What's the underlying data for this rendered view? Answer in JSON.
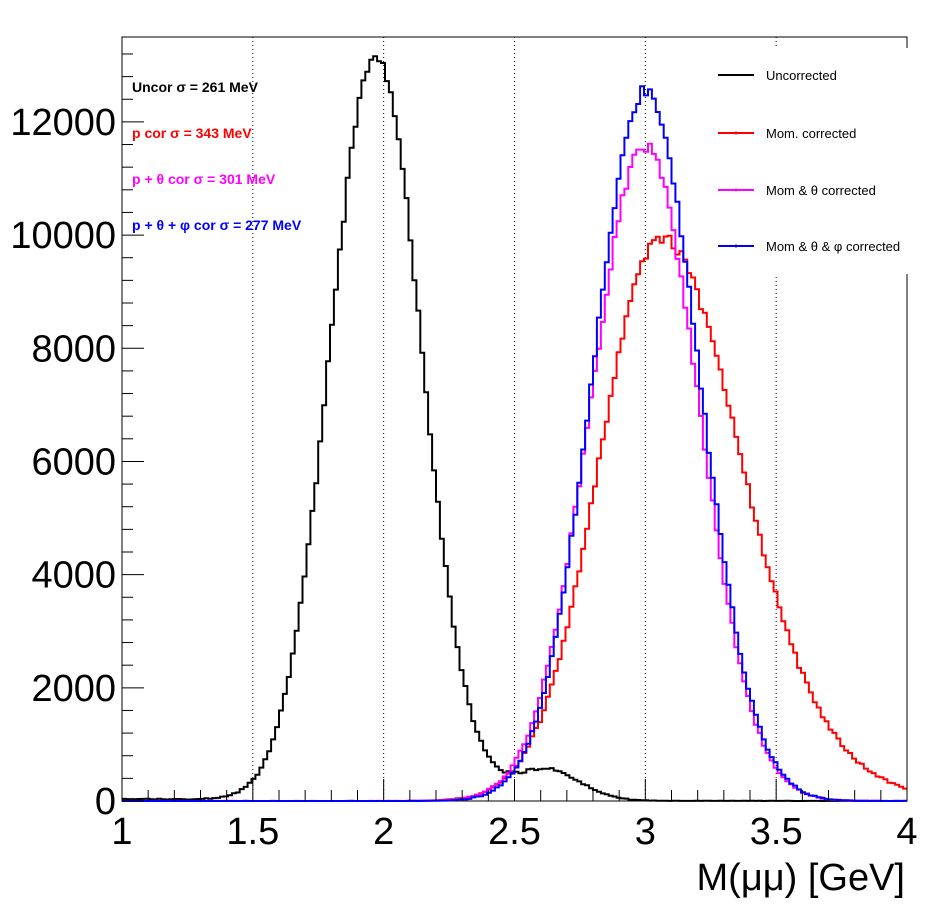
{
  "chart_data": {
    "type": "line",
    "style": "step-histogram",
    "xlabel": "M(μμ) [GeV]",
    "ylabel": "",
    "xlim": [
      1,
      4
    ],
    "ylim": [
      0,
      13500
    ],
    "x_ticks": [
      "1",
      "1.5",
      "2",
      "2.5",
      "3",
      "3.5",
      "4"
    ],
    "x_tick_values": [
      1,
      1.5,
      2,
      2.5,
      3,
      3.5,
      4
    ],
    "y_ticks": [
      "0",
      "2000",
      "4000",
      "6000",
      "8000",
      "10000",
      "12000"
    ],
    "y_tick_values": [
      0,
      2000,
      4000,
      6000,
      8000,
      10000,
      12000
    ],
    "grid_x": true,
    "grid_y": false,
    "legend_position": "top-right",
    "annotations": [
      {
        "text": "Uncor  σ = 261 MeV",
        "color": "#000000"
      },
      {
        "text": "p cor  σ = 343 MeV",
        "color": "#ff0000"
      },
      {
        "text": "p +  θ cor  σ = 301 MeV",
        "color": "#ff00ff"
      },
      {
        "text": "p +  θ +  φ cor  σ = 277 MeV",
        "color": "#0000ff"
      }
    ],
    "series": [
      {
        "name": "Uncorrected",
        "color": "#000000",
        "shape": "gauss-tail",
        "mean": 1.97,
        "sigma": 0.175,
        "peak": 13200,
        "tail_amp": 550,
        "tail_center": 2.62,
        "tail_width": 0.13
      },
      {
        "name": "Mom. corrected",
        "color": "#ff0000",
        "shape": "asym-gauss",
        "mean": 3.06,
        "sigma_left": 0.235,
        "sigma_right": 0.3,
        "peak": 9950
      },
      {
        "name": "Mom & θ corrected",
        "color": "#ff00ff",
        "shape": "asym-gauss",
        "mean": 3.0,
        "sigma_left": 0.21,
        "sigma_right": 0.205,
        "peak": 11550
      },
      {
        "name": "Mom & θ & φ corrected",
        "color": "#0000ff",
        "shape": "asym-gauss",
        "mean": 3.0,
        "sigma_left": 0.2,
        "sigma_right": 0.205,
        "peak": 12550
      }
    ],
    "bin_width": 0.015
  }
}
